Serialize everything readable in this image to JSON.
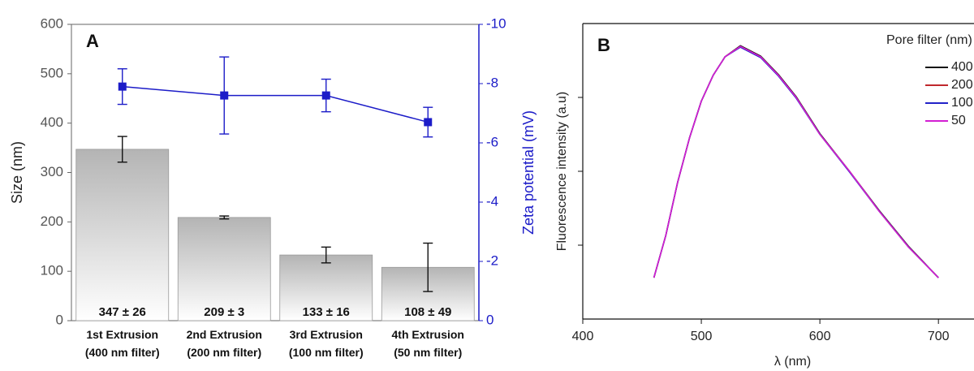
{
  "chart_data": [
    {
      "type": "bar",
      "panel": "A",
      "y_label": "Size (nm)",
      "y2_label": "Zeta potential (mV)",
      "categories": [
        "1st Extrusion (400 nm filter)",
        "2nd Extrusion (200 nm filter)",
        "3rd Extrusion (100 nm filter)",
        "4th Extrusion (50 nm filter)"
      ],
      "series": [
        {
          "type": "bar",
          "values": [
            347,
            209,
            133,
            108
          ],
          "errors": [
            26,
            3,
            16,
            49
          ],
          "value_labels": [
            "347 ± 26",
            "209 ± 3",
            "133 ± 16",
            "108 ± 49"
          ],
          "color": "#b8b8b8"
        },
        {
          "type": "line",
          "axis": "y2",
          "values": [
            -7.9,
            -7.6,
            -7.6,
            -6.7
          ],
          "errors": [
            0.6,
            1.3,
            0.55,
            0.5
          ],
          "color": "#1c1cc8"
        }
      ],
      "ylim": [
        0,
        600
      ],
      "yticks": [
        0,
        100,
        200,
        300,
        400,
        500,
        600
      ],
      "y2lim": [
        0,
        -10
      ],
      "y2ticks": [
        0,
        -2,
        -4,
        -6,
        -8,
        -10
      ]
    },
    {
      "type": "line",
      "panel": "B",
      "x_label": "λ (nm)",
      "y_label": "Fluorescence intensity (a.u)",
      "legend_title": "Pore filter (nm)",
      "legend": "upper right",
      "x": [
        460,
        470,
        480,
        490,
        500,
        510,
        520,
        533,
        550,
        565,
        580,
        600,
        625,
        650,
        675,
        700
      ],
      "series": [
        {
          "name": "400",
          "color": "#111111",
          "values": [
            0.56,
            1.13,
            1.85,
            2.45,
            2.95,
            3.3,
            3.55,
            3.7,
            3.56,
            3.31,
            3.01,
            2.51,
            2.0,
            1.47,
            0.98,
            0.56
          ]
        },
        {
          "name": "200",
          "color": "#c0282d",
          "values": [
            0.56,
            1.13,
            1.85,
            2.45,
            2.95,
            3.3,
            3.55,
            3.69,
            3.55,
            3.3,
            3.0,
            2.5,
            2.0,
            1.46,
            0.97,
            0.56
          ]
        },
        {
          "name": "100",
          "color": "#2222c8",
          "values": [
            0.56,
            1.13,
            1.85,
            2.45,
            2.95,
            3.3,
            3.55,
            3.68,
            3.54,
            3.29,
            2.99,
            2.5,
            1.99,
            1.46,
            0.97,
            0.56
          ]
        },
        {
          "name": "50",
          "color": "#d21fd2",
          "values": [
            0.56,
            1.13,
            1.85,
            2.45,
            2.95,
            3.3,
            3.55,
            3.69,
            3.55,
            3.3,
            3.0,
            2.5,
            2.0,
            1.46,
            0.97,
            0.56
          ]
        }
      ],
      "xlim": [
        400,
        730
      ],
      "xticks": [
        400,
        500,
        600,
        700
      ],
      "ylim": [
        0,
        4
      ],
      "yticks": [
        1,
        2,
        3
      ]
    }
  ]
}
